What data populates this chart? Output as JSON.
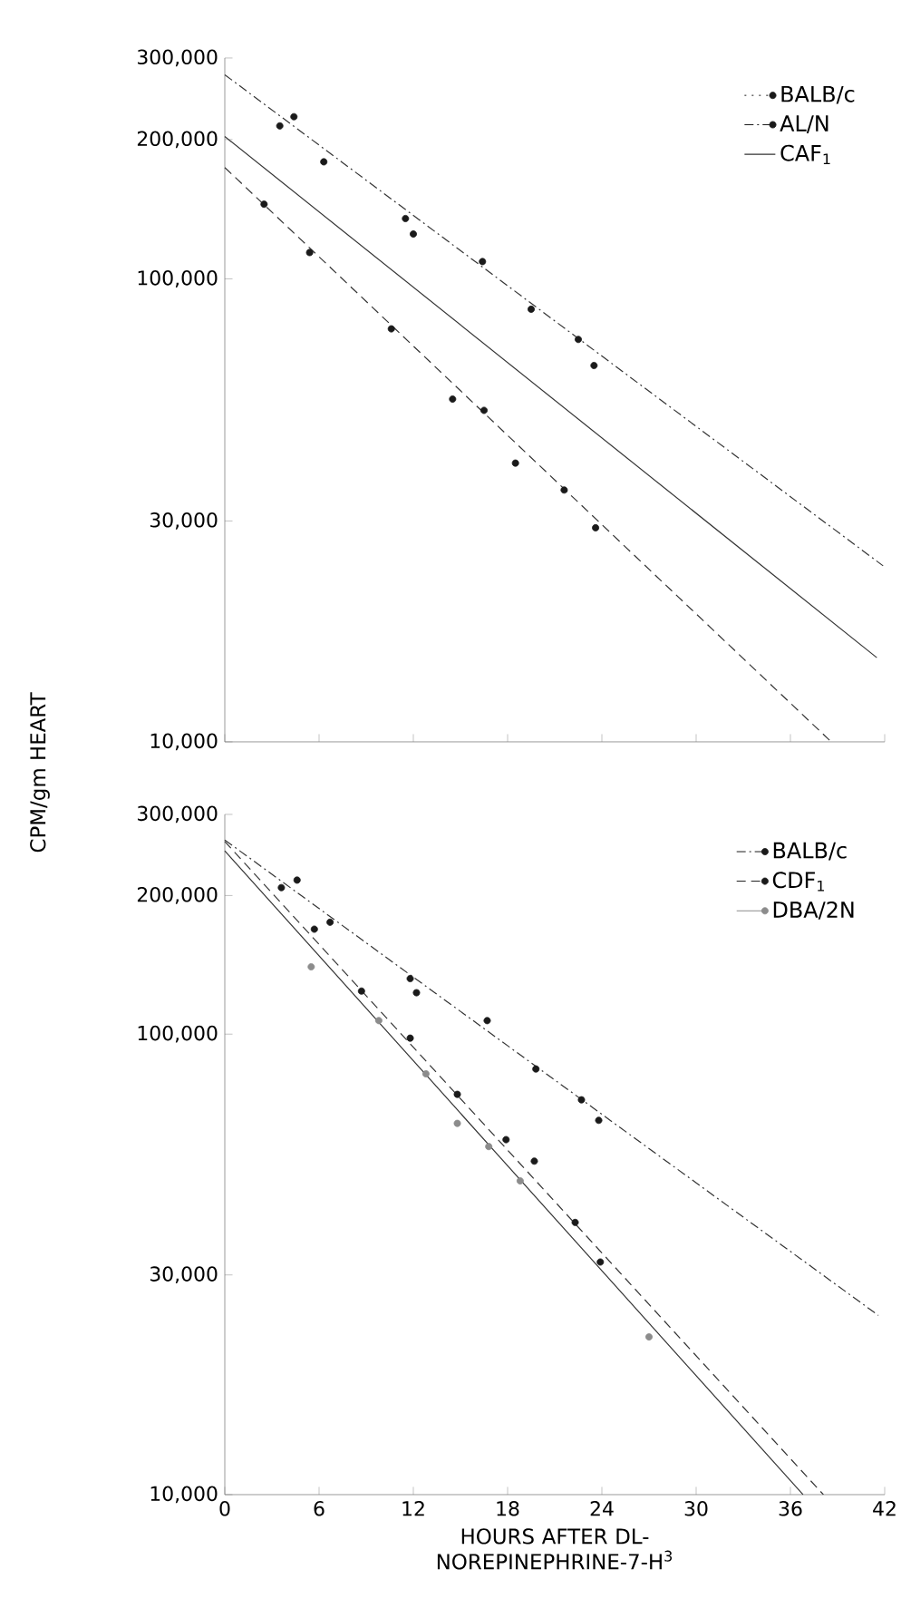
{
  "chart_data": [
    {
      "type": "scatter",
      "marker": "circle",
      "ylabel": "CPM/gm HEART",
      "log": "y",
      "xlim": [
        0,
        42
      ],
      "xticks": [
        0,
        6,
        12,
        18,
        24,
        30,
        36,
        42
      ],
      "tick_labels": "y",
      "ylim": [
        10000,
        300000
      ],
      "yticks": [
        {
          "value": 10000,
          "label": "10,000"
        },
        {
          "value": 30000,
          "label": "30,000"
        },
        {
          "value": 100000,
          "label": "100,000"
        },
        {
          "value": 200000,
          "label": "200,000"
        },
        {
          "value": 300000,
          "label": "300,000"
        }
      ],
      "legend": "top right",
      "series": [
        {
          "name": "BALB/c",
          "line_style": "dotted",
          "color": "#1a1a1a",
          "x": [
            3.5,
            4.4,
            6.3,
            11.5,
            12.0,
            16.4,
            19.5,
            22.5,
            23.5
          ],
          "values": [
            214000,
            224000,
            179000,
            135000,
            125000,
            109000,
            86000,
            74000,
            65000
          ]
        },
        {
          "name": "AL/N",
          "line_style": "dashdot",
          "color": "#1a1a1a",
          "x": [
            2.5,
            5.4,
            10.6,
            14.5,
            16.5,
            18.5,
            21.6,
            23.6
          ],
          "values": [
            145000,
            114000,
            78000,
            55000,
            52000,
            40000,
            35000,
            29000
          ]
        },
        {
          "name": "CAF$_{1}$",
          "type": "line",
          "marker": "none",
          "line_style": "solid",
          "color": "#333333",
          "x": [
            0,
            41.5
          ],
          "values": [
            203000,
            15200
          ]
        },
        {
          "type": "line",
          "marker": "none",
          "line_style": "dashdot",
          "color": "#333333",
          "x": [
            0,
            41.9
          ],
          "values": [
            276000,
            24000
          ]
        },
        {
          "type": "line",
          "marker": "none",
          "line_style": "dashed",
          "color": "#333333",
          "x": [
            0,
            38.6
          ],
          "values": [
            174000,
            10000
          ]
        }
      ]
    },
    {
      "type": "scatter",
      "marker": "circle",
      "xlabel": "HOURS AFTER DL-NOREPINEPHRINE-7-H$^{3}$",
      "log": "y",
      "xlim": [
        0,
        42
      ],
      "xticks": [
        0,
        6,
        12,
        18,
        24,
        30,
        36,
        42
      ],
      "ylim": [
        10000,
        300000
      ],
      "yticks": [
        {
          "value": 10000,
          "label": "10,000"
        },
        {
          "value": 30000,
          "label": "30,000"
        },
        {
          "value": 100000,
          "label": "100,000"
        },
        {
          "value": 200000,
          "label": "200,000"
        },
        {
          "value": 300000,
          "label": "300,000"
        }
      ],
      "legend": "top right",
      "series": [
        {
          "name": "BALB/c",
          "line_style": "dashdot",
          "color": "#1a1a1a",
          "x": [
            3.6,
            4.6,
            6.7,
            11.8,
            12.2,
            16.7,
            19.8,
            22.7,
            23.8
          ],
          "values": [
            208000,
            216000,
            175000,
            132000,
            123000,
            107000,
            84000,
            72000,
            65000
          ]
        },
        {
          "name": "CDF$_{1}$",
          "line_style": "dashed",
          "color": "#1a1a1a",
          "x": [
            5.7,
            8.7,
            11.8,
            14.8,
            17.9,
            19.7,
            22.3,
            23.9
          ],
          "values": [
            169000,
            124000,
            98000,
            74000,
            59000,
            53000,
            39000,
            32000
          ]
        },
        {
          "name": "DBA/2N",
          "line_style": "solid",
          "color": "#8c8c8c",
          "x": [
            5.5,
            9.8,
            12.8,
            14.8,
            16.8,
            18.8,
            27.0
          ],
          "values": [
            140000,
            107000,
            82000,
            64000,
            57000,
            48000,
            22000
          ]
        },
        {
          "type": "line",
          "marker": "none",
          "line_style": "dashdot",
          "color": "#333333",
          "x": [
            0,
            41.6
          ],
          "values": [
            264000,
            24500
          ]
        },
        {
          "type": "line",
          "marker": "none",
          "line_style": "dashed",
          "color": "#333333",
          "x": [
            0,
            38.1
          ],
          "values": [
            262000,
            10000
          ]
        },
        {
          "type": "line",
          "marker": "none",
          "line_style": "solid",
          "color": "#333333",
          "x": [
            0,
            36.8
          ],
          "values": [
            250000,
            10000
          ]
        }
      ]
    }
  ]
}
